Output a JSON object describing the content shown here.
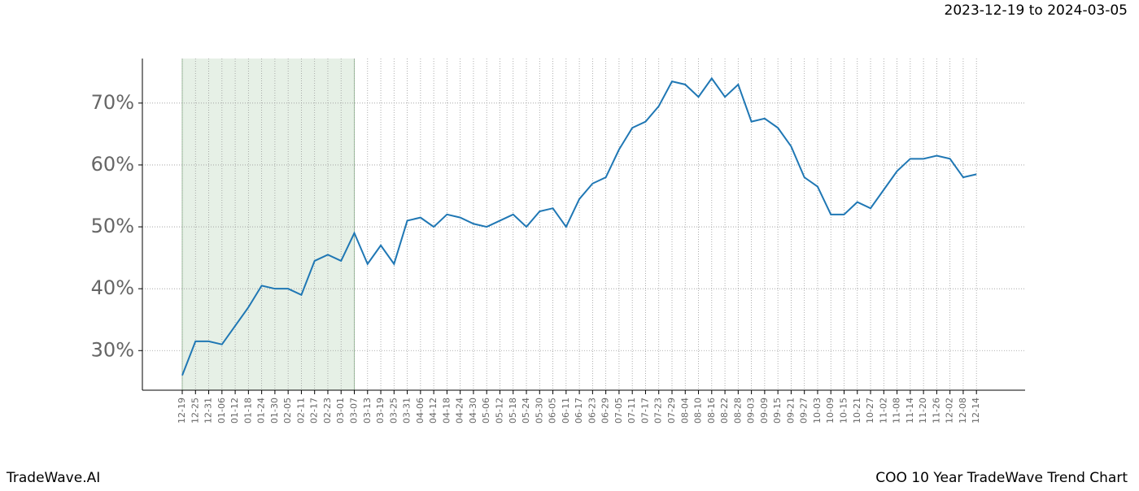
{
  "chart_data": {
    "type": "line",
    "title": "COO 10 Year TradeWave Trend Chart",
    "date_range": "2023-12-19 to 2024-03-05",
    "brand": "TradeWave.AI",
    "categories": [
      "12-19",
      "12-25",
      "12-31",
      "01-06",
      "01-12",
      "01-18",
      "01-24",
      "01-30",
      "02-05",
      "02-11",
      "02-17",
      "02-23",
      "03-01",
      "03-07",
      "03-13",
      "03-19",
      "03-25",
      "03-31",
      "04-06",
      "04-12",
      "04-18",
      "04-24",
      "04-30",
      "05-06",
      "05-12",
      "05-18",
      "05-24",
      "05-30",
      "06-05",
      "06-11",
      "06-17",
      "06-23",
      "06-29",
      "07-05",
      "07-11",
      "07-17",
      "07-23",
      "07-29",
      "08-04",
      "08-10",
      "08-16",
      "08-22",
      "08-28",
      "09-03",
      "09-09",
      "09-15",
      "09-21",
      "09-27",
      "10-03",
      "10-09",
      "10-15",
      "10-21",
      "10-27",
      "11-02",
      "11-08",
      "11-14",
      "11-20",
      "11-26",
      "12-02",
      "12-08",
      "12-14"
    ],
    "series": [
      {
        "color": "#1f77b4",
        "values": [
          26,
          31.5,
          31.5,
          31,
          34,
          37,
          40.5,
          40,
          40,
          39,
          44.5,
          45.5,
          44.5,
          49,
          44,
          47,
          44,
          51,
          51.5,
          50,
          52,
          51.5,
          50.5,
          50,
          51,
          52,
          50,
          52.5,
          53,
          50,
          54.5,
          57,
          58,
          62.5,
          66,
          67,
          69.5,
          73.5,
          73,
          71,
          74,
          71,
          73,
          67,
          67.5,
          66,
          63,
          58,
          56.5,
          52,
          52,
          54,
          53,
          56,
          59,
          61,
          61,
          61.5,
          61,
          58,
          58.5
        ]
      }
    ],
    "shaded": {
      "from": "12-19",
      "to": "03-07",
      "color": "#e6f0e6"
    },
    "ylim": [
      23.6,
      77.2
    ],
    "yticks": [
      {
        "value": 30,
        "label": "30%"
      },
      {
        "value": 40,
        "label": "40%"
      },
      {
        "value": 50,
        "label": "50%"
      },
      {
        "value": 60,
        "label": "60%"
      },
      {
        "value": 70,
        "label": "70%"
      }
    ],
    "grid": true
  }
}
